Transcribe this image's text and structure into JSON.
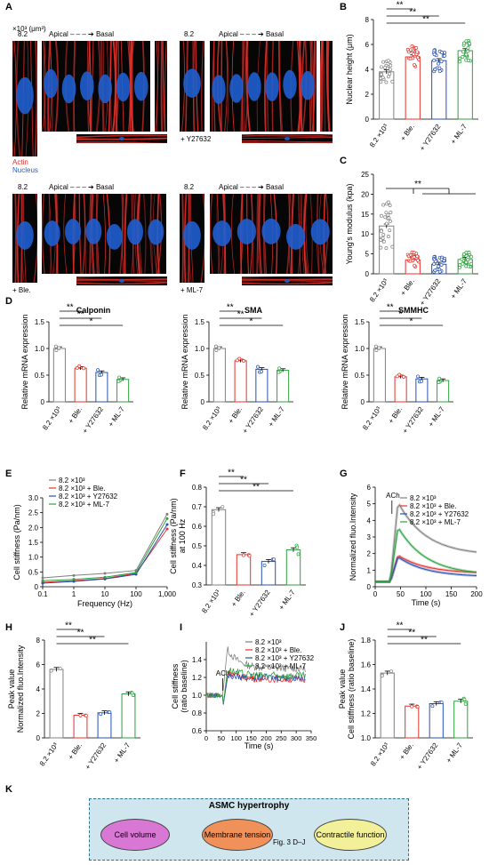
{
  "panels": {
    "A": "A",
    "B": "B",
    "C": "C",
    "D": "D",
    "E": "E",
    "F": "F",
    "G": "G",
    "H": "H",
    "I": "I",
    "J": "J",
    "K": "K"
  },
  "colors": {
    "control": "#808080",
    "ble": "#e8312a",
    "y27632": "#2450b4",
    "ml7": "#2ca13e",
    "actin": "#e0302a",
    "nucleus": "#1f5fd0"
  },
  "panelA": {
    "unit_label": "×10³ (μm³)",
    "value_label": "8.2",
    "axis_text": "Apical – – – ➔ Basal",
    "legend_actin": "Actin",
    "legend_nucleus": "Nucleus",
    "treat_y": "+ Y27632",
    "treat_ble": "+ Ble.",
    "treat_ml7": "+ ML-7"
  },
  "xcats": [
    "8.2 ×10³",
    "+ Ble.",
    "+ Y27632",
    "+ ML-7"
  ],
  "panelB": {
    "ylabel": "Nuclear height (μm)",
    "sig": [
      "**",
      "**",
      "**"
    ],
    "chart_data": {
      "type": "bar",
      "categories": [
        "8.2 ×10³",
        "+ Ble.",
        "+ Y27632",
        "+ ML-7"
      ],
      "values": [
        3.8,
        5.0,
        4.7,
        5.5
      ],
      "ylim": [
        0,
        8
      ],
      "yticks": [
        "0",
        "2",
        "4",
        "6",
        "8"
      ]
    }
  },
  "panelC": {
    "ylabel": "Young's modulus (kpa)",
    "sig": "**",
    "chart_data": {
      "type": "bar",
      "categories": [
        "8.2 ×10³",
        "+ Ble.",
        "+ Y27632",
        "+ ML-7"
      ],
      "values": [
        12,
        3.5,
        2.4,
        3.6
      ],
      "ylim": [
        0,
        25
      ],
      "yticks": [
        "0",
        "5",
        "10",
        "15",
        "20",
        "25"
      ]
    }
  },
  "panelD": {
    "ylabel": "Relative mRNA expression",
    "charts": [
      {
        "title": "Calponin",
        "values": [
          1.0,
          0.63,
          0.55,
          0.42
        ],
        "sig": [
          "**",
          "**",
          "*"
        ]
      },
      {
        "title": "SMA",
        "values": [
          1.0,
          0.77,
          0.61,
          0.59
        ],
        "sig": [
          "**",
          "**",
          "*"
        ]
      },
      {
        "title": "SMMHC",
        "values": [
          1.0,
          0.47,
          0.43,
          0.4
        ],
        "sig": [
          "**",
          "*",
          "*"
        ]
      }
    ],
    "ylim": [
      0,
      1.5
    ],
    "yticks": [
      "0",
      "0.5",
      "1.0",
      "1.5"
    ]
  },
  "panelE": {
    "ylabel": "Cell stiffness (Pa/nm)",
    "xlabel": "Frequency (Hz)",
    "chart_data": {
      "type": "line",
      "x": [
        0.1,
        1,
        10,
        100,
        1000
      ],
      "xticks": [
        "0.1",
        "1",
        "10",
        "100",
        "1,000"
      ],
      "ylim": [
        0,
        3.0
      ],
      "yticks": [
        "0",
        "0.5",
        "1.0",
        "1.5",
        "2.0",
        "2.5",
        "3.0"
      ],
      "series": [
        {
          "name": "8.2 ×10³",
          "values": [
            0.3,
            0.38,
            0.45,
            0.55,
            2.45
          ]
        },
        {
          "name": "8.2 ×10³ + Ble.",
          "values": [
            0.15,
            0.2,
            0.28,
            0.45,
            1.95
          ]
        },
        {
          "name": "8.2 ×10³ + Y27632",
          "values": [
            0.12,
            0.18,
            0.26,
            0.42,
            2.1
          ]
        },
        {
          "name": "8.2 ×10³ + ML-7",
          "values": [
            0.2,
            0.25,
            0.32,
            0.48,
            2.3
          ]
        }
      ]
    }
  },
  "panelF": {
    "ylabel1": "Cell stiffness (Pa/nm)",
    "ylabel2": "at 100 Hz",
    "sig": [
      "**",
      "**",
      "**"
    ],
    "chart_data": {
      "type": "bar",
      "categories": [
        "8.2 ×10³",
        "+ Ble.",
        "+ Y27632",
        "+ ML-7"
      ],
      "values": [
        0.685,
        0.455,
        0.42,
        0.48
      ],
      "ylim": [
        0.3,
        0.8
      ],
      "yticks": [
        "0.3",
        "0.4",
        "0.5",
        "0.6",
        "0.7",
        "0.8"
      ]
    }
  },
  "panelG": {
    "ylabel": "Normalized fluo.Intensity",
    "xlabel": "Time (s)",
    "ach": "ACh",
    "chart_data": {
      "type": "line",
      "xlim": [
        0,
        200
      ],
      "xticks": [
        "0",
        "50",
        "100",
        "150",
        "200"
      ],
      "ylim": [
        0,
        6
      ],
      "yticks": [
        "0",
        "1",
        "2",
        "3",
        "4",
        "5",
        "6"
      ],
      "series": [
        {
          "name": "8.2 ×10³",
          "peak": 5.1,
          "end": 1.9
        },
        {
          "name": "8.2 ×10³ + Ble.",
          "peak": 1.9,
          "end": 0.8
        },
        {
          "name": "8.2 ×10³ + Y27632",
          "peak": 1.8,
          "end": 0.6
        },
        {
          "name": "8.2 ×10³ + ML-7",
          "peak": 3.6,
          "end": 0.7
        }
      ]
    }
  },
  "panelH": {
    "ylabel1": "Peak value",
    "ylabel2": "Normalized fluo.Intensity",
    "sig": [
      "**",
      "**",
      "**"
    ],
    "chart_data": {
      "type": "bar",
      "categories": [
        "8.2 ×10³",
        "+ Ble.",
        "+ Y27632",
        "+ ML-7"
      ],
      "values": [
        5.6,
        1.85,
        2.05,
        3.6
      ],
      "ylim": [
        0,
        8
      ],
      "yticks": [
        "0",
        "2",
        "4",
        "6",
        "8"
      ]
    }
  },
  "panelI": {
    "ylabel1": "Cell stiffness",
    "ylabel2": "(ratio baseline)",
    "xlabel": "Time (s)",
    "ach": "ACh",
    "chart_data": {
      "type": "line",
      "xlim": [
        0,
        350
      ],
      "xticks": [
        "0",
        "50",
        "100",
        "150",
        "200",
        "250",
        "300",
        "350"
      ],
      "ylim": [
        0.6,
        1.6
      ],
      "yticks": [
        "0.6",
        "0.8",
        "1.0",
        "1.2",
        "1.4"
      ],
      "series": [
        {
          "name": "8.2 ×10³",
          "peak": 1.52,
          "end": 1.3
        },
        {
          "name": "8.2 ×10³ + Ble.",
          "peak": 1.27,
          "end": 1.18
        },
        {
          "name": "8.2 ×10³ + Y27632",
          "peak": 1.22,
          "end": 1.2
        },
        {
          "name": "8.2 ×10³ + ML-7",
          "peak": 1.3,
          "end": 1.22
        }
      ]
    }
  },
  "panelJ": {
    "ylabel1": "Peak value",
    "ylabel2": "Cell stiffness (ratio baseline)",
    "sig": [
      "**",
      "**",
      "**"
    ],
    "chart_data": {
      "type": "bar",
      "categories": [
        "8.2 ×10³",
        "+ Ble.",
        "+ Y27632",
        "+ ML-7"
      ],
      "values": [
        1.53,
        1.26,
        1.28,
        1.3
      ],
      "ylim": [
        1.0,
        1.8
      ],
      "yticks": [
        "1.0",
        "1.2",
        "1.4",
        "1.6",
        "1.8"
      ]
    }
  },
  "panelK": {
    "title": "ASMC hypertrophy",
    "node1": "Cell volume",
    "node2": "Membrane tension",
    "node3": "Contractile function",
    "arrow_label": "Fig. 3 D–J"
  }
}
